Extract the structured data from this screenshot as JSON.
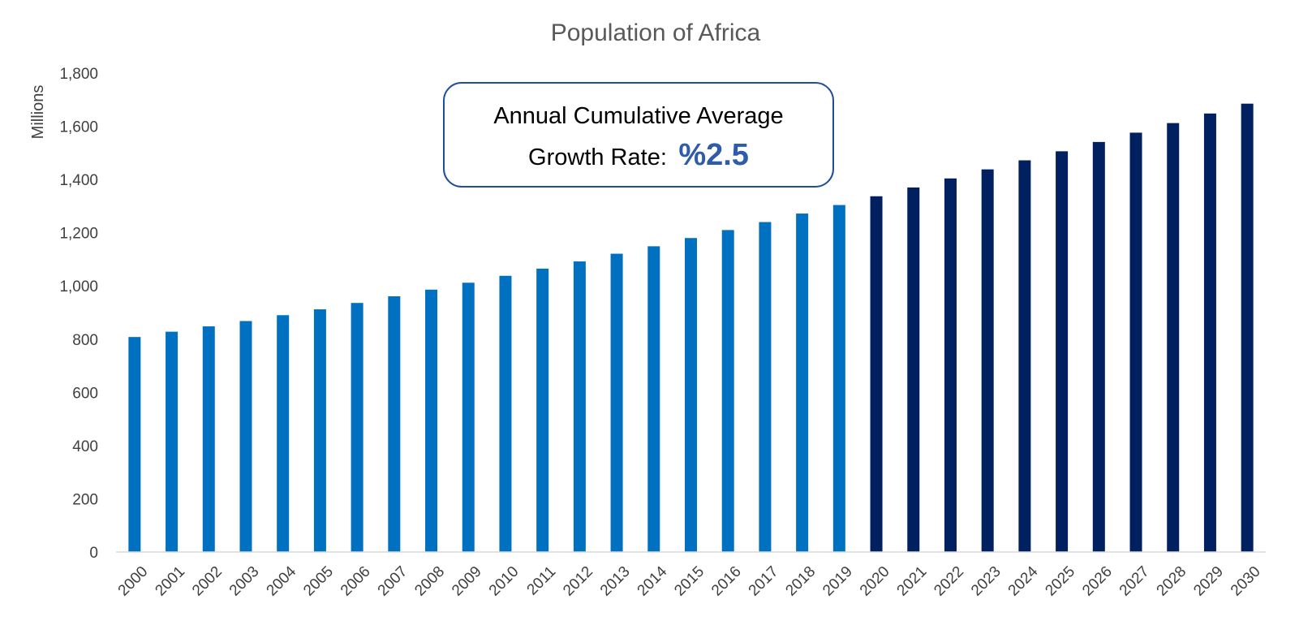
{
  "chart_data": {
    "type": "bar",
    "title": "Population of Africa",
    "ylabel": "Millions",
    "xlabel": "",
    "ylim": [
      0,
      1800
    ],
    "yticks": [
      0,
      200,
      400,
      600,
      800,
      1000,
      1200,
      1400,
      1600,
      1800
    ],
    "ytick_labels": [
      "0",
      "200",
      "400",
      "600",
      "800",
      "1,000",
      "1,200",
      "1,400",
      "1,600",
      "1,800"
    ],
    "grid": false,
    "categories": [
      "2000",
      "2001",
      "2002",
      "2003",
      "2004",
      "2005",
      "2006",
      "2007",
      "2008",
      "2009",
      "2010",
      "2011",
      "2012",
      "2013",
      "2014",
      "2015",
      "2016",
      "2017",
      "2018",
      "2019",
      "2020",
      "2021",
      "2022",
      "2023",
      "2024",
      "2025",
      "2026",
      "2027",
      "2028",
      "2029",
      "2030"
    ],
    "values": [
      808,
      828,
      848,
      868,
      890,
      912,
      936,
      961,
      986,
      1012,
      1038,
      1065,
      1092,
      1121,
      1149,
      1180,
      1210,
      1240,
      1272,
      1304,
      1337,
      1370,
      1404,
      1438,
      1472,
      1506,
      1541,
      1576,
      1612,
      1648,
      1685
    ],
    "colors": {
      "historical": "#0070C0",
      "projected": "#002060"
    },
    "projected_from_index": 20,
    "annotation": {
      "line1": "Annual Cumulative Average",
      "line2": "Growth Rate:",
      "value": "%2.5",
      "value_color": "#2E5BAA",
      "border_color": "#1F4E9A"
    }
  }
}
